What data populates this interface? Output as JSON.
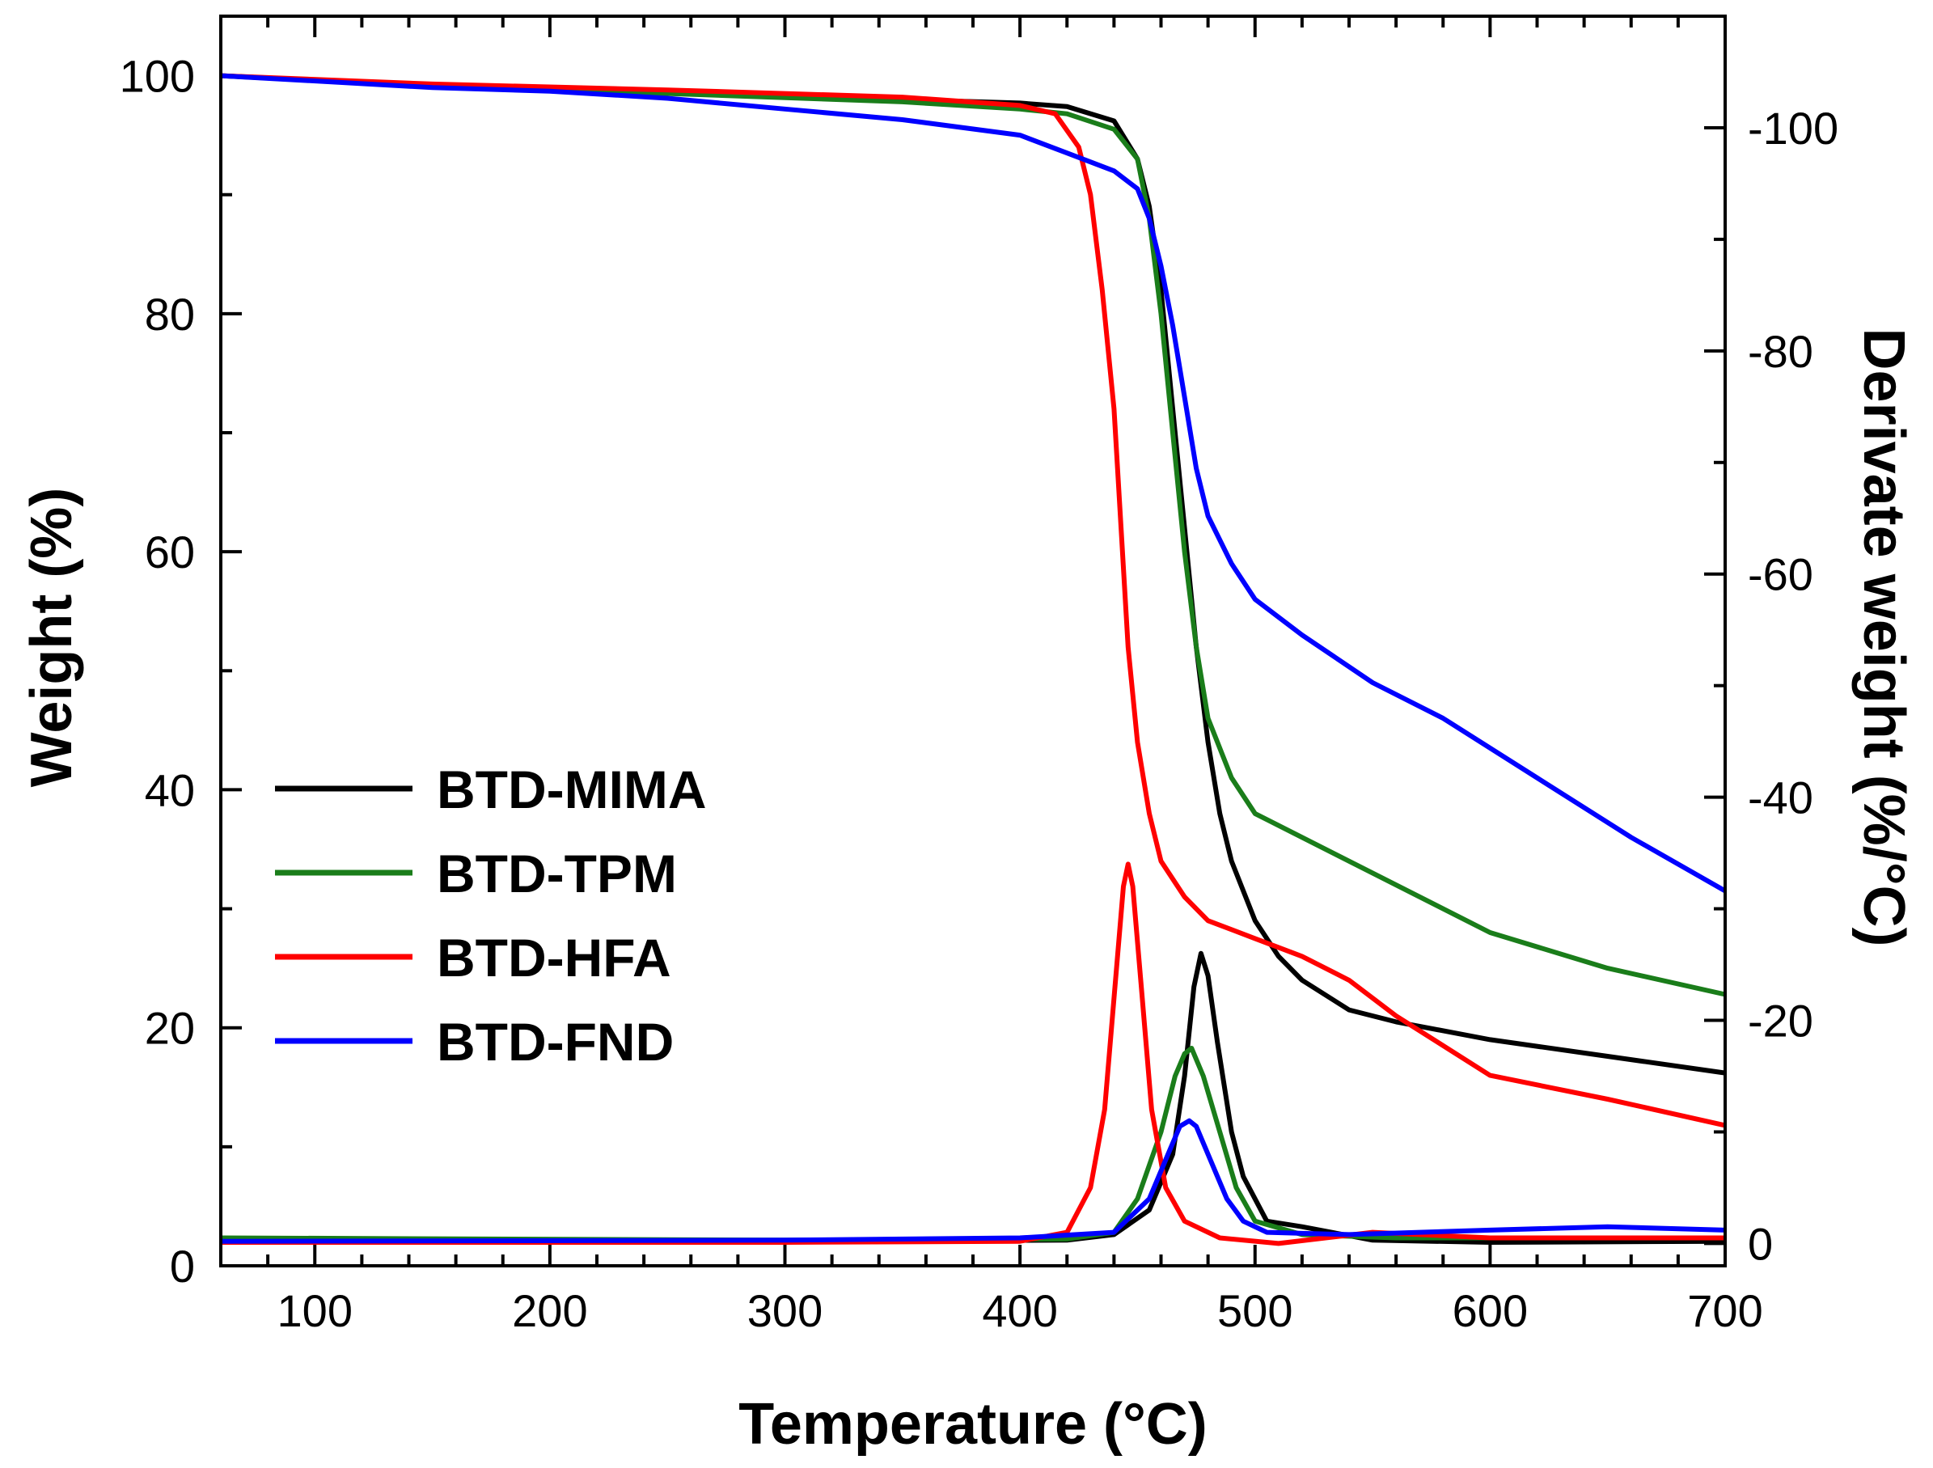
{
  "chart_data": {
    "type": "line",
    "title": "",
    "xlabel": "Temperature (°C)",
    "ylabel": "Weight (%)",
    "y2label": "Derivate weight (%/°C)",
    "xlim": [
      60,
      700
    ],
    "ylim": [
      0,
      105
    ],
    "y2lim": [
      2,
      -110
    ],
    "x_ticks": [
      100,
      200,
      300,
      400,
      500,
      600,
      700
    ],
    "y_ticks": [
      0,
      20,
      40,
      60,
      80,
      100
    ],
    "y2_ticks": [
      0,
      -20,
      -40,
      -60,
      -80,
      -100
    ],
    "legend_position": "lower-left",
    "series": [
      {
        "name": "BTD-MIMA",
        "color": "#000000",
        "weight": [
          [
            60,
            100
          ],
          [
            150,
            99.2
          ],
          [
            250,
            98.7
          ],
          [
            350,
            98.0
          ],
          [
            400,
            97.7
          ],
          [
            420,
            97.4
          ],
          [
            440,
            96.2
          ],
          [
            450,
            93
          ],
          [
            455,
            89
          ],
          [
            460,
            82
          ],
          [
            465,
            72
          ],
          [
            470,
            62
          ],
          [
            475,
            52
          ],
          [
            480,
            44
          ],
          [
            485,
            38
          ],
          [
            490,
            34
          ],
          [
            500,
            29
          ],
          [
            510,
            26
          ],
          [
            520,
            24
          ],
          [
            540,
            21.5
          ],
          [
            560,
            20.5
          ],
          [
            600,
            19
          ],
          [
            650,
            17.6
          ],
          [
            700,
            16.2
          ]
        ],
        "derivative": [
          [
            60,
            -0.2
          ],
          [
            300,
            -0.2
          ],
          [
            420,
            -0.3
          ],
          [
            440,
            -0.8
          ],
          [
            455,
            -3
          ],
          [
            465,
            -8
          ],
          [
            470,
            -15
          ],
          [
            474,
            -23
          ],
          [
            477,
            -26
          ],
          [
            480,
            -24
          ],
          [
            484,
            -18
          ],
          [
            490,
            -10
          ],
          [
            495,
            -6
          ],
          [
            505,
            -2
          ],
          [
            520,
            -1.5
          ],
          [
            550,
            -0.3
          ],
          [
            600,
            -0.1
          ],
          [
            700,
            -0.2
          ]
        ]
      },
      {
        "name": "BTD-TPM",
        "color": "#1a7d1a",
        "weight": [
          [
            60,
            100
          ],
          [
            150,
            99.1
          ],
          [
            250,
            98.5
          ],
          [
            350,
            97.8
          ],
          [
            400,
            97.2
          ],
          [
            420,
            96.8
          ],
          [
            440,
            95.5
          ],
          [
            450,
            93
          ],
          [
            455,
            88
          ],
          [
            460,
            80
          ],
          [
            465,
            70
          ],
          [
            470,
            60
          ],
          [
            475,
            52
          ],
          [
            480,
            46
          ],
          [
            490,
            41
          ],
          [
            500,
            38
          ],
          [
            520,
            36
          ],
          [
            550,
            33
          ],
          [
            600,
            28
          ],
          [
            650,
            25
          ],
          [
            700,
            22.8
          ]
        ],
        "derivative": [
          [
            60,
            -0.5
          ],
          [
            300,
            -0.3
          ],
          [
            420,
            -0.4
          ],
          [
            440,
            -1
          ],
          [
            450,
            -4
          ],
          [
            460,
            -10
          ],
          [
            466,
            -15
          ],
          [
            470,
            -17
          ],
          [
            473,
            -17.5
          ],
          [
            478,
            -15
          ],
          [
            485,
            -10
          ],
          [
            492,
            -5
          ],
          [
            500,
            -2
          ],
          [
            520,
            -0.8
          ],
          [
            560,
            -0.5
          ],
          [
            700,
            -0.5
          ]
        ]
      },
      {
        "name": "BTD-HFA",
        "color": "#ff0000",
        "weight": [
          [
            60,
            100
          ],
          [
            150,
            99.3
          ],
          [
            250,
            98.8
          ],
          [
            350,
            98.2
          ],
          [
            400,
            97.5
          ],
          [
            415,
            96.8
          ],
          [
            425,
            94
          ],
          [
            430,
            90
          ],
          [
            435,
            82
          ],
          [
            440,
            72
          ],
          [
            443,
            62
          ],
          [
            446,
            52
          ],
          [
            450,
            44
          ],
          [
            455,
            38
          ],
          [
            460,
            34
          ],
          [
            470,
            31
          ],
          [
            480,
            29
          ],
          [
            500,
            27.5
          ],
          [
            520,
            26
          ],
          [
            540,
            24
          ],
          [
            560,
            21
          ],
          [
            600,
            16
          ],
          [
            650,
            14
          ],
          [
            700,
            11.8
          ]
        ],
        "derivative": [
          [
            60,
            -0.1
          ],
          [
            300,
            -0.1
          ],
          [
            400,
            -0.2
          ],
          [
            420,
            -1
          ],
          [
            430,
            -5
          ],
          [
            436,
            -12
          ],
          [
            440,
            -22
          ],
          [
            444,
            -32
          ],
          [
            446,
            -34
          ],
          [
            448,
            -32
          ],
          [
            452,
            -22
          ],
          [
            456,
            -12
          ],
          [
            462,
            -5
          ],
          [
            470,
            -2
          ],
          [
            485,
            -0.5
          ],
          [
            510,
            0
          ],
          [
            530,
            -0.5
          ],
          [
            550,
            -1
          ],
          [
            570,
            -0.8
          ],
          [
            600,
            -0.5
          ],
          [
            700,
            -0.5
          ]
        ]
      },
      {
        "name": "BTD-FND",
        "color": "#0000ff",
        "weight": [
          [
            60,
            100
          ],
          [
            150,
            99
          ],
          [
            200,
            98.7
          ],
          [
            250,
            98.1
          ],
          [
            300,
            97.2
          ],
          [
            350,
            96.3
          ],
          [
            400,
            95
          ],
          [
            420,
            93.5
          ],
          [
            440,
            92
          ],
          [
            450,
            90.5
          ],
          [
            455,
            88
          ],
          [
            460,
            84
          ],
          [
            465,
            79
          ],
          [
            470,
            73
          ],
          [
            475,
            67
          ],
          [
            480,
            63
          ],
          [
            490,
            59
          ],
          [
            500,
            56
          ],
          [
            520,
            53
          ],
          [
            550,
            49
          ],
          [
            580,
            46
          ],
          [
            620,
            41
          ],
          [
            660,
            36
          ],
          [
            700,
            31.5
          ]
        ],
        "derivative": [
          [
            60,
            -0.2
          ],
          [
            300,
            -0.3
          ],
          [
            400,
            -0.5
          ],
          [
            440,
            -1
          ],
          [
            455,
            -4
          ],
          [
            463,
            -8
          ],
          [
            468,
            -10.5
          ],
          [
            472,
            -11
          ],
          [
            475,
            -10.5
          ],
          [
            478,
            -9
          ],
          [
            482,
            -7
          ],
          [
            488,
            -4
          ],
          [
            495,
            -2
          ],
          [
            505,
            -1
          ],
          [
            540,
            -0.8
          ],
          [
            600,
            -1.2
          ],
          [
            650,
            -1.5
          ],
          [
            700,
            -1.2
          ]
        ]
      }
    ]
  }
}
